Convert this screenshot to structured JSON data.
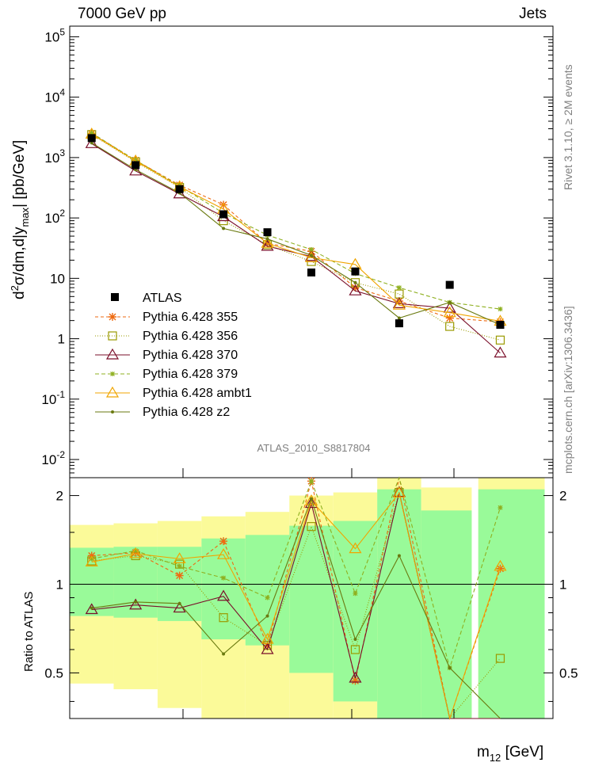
{
  "header": {
    "left": "7000 GeV pp",
    "right": "Jets"
  },
  "side": {
    "top": "Rivet 3.1.10, ≥ 2M events",
    "bottom": "mcplots.cern.ch [arXiv:1306.3436]"
  },
  "colors": {
    "data": "#000000",
    "p355": "#ee6a10",
    "p356": "#9a9a00",
    "p370": "#7a0f2a",
    "p379": "#8fb020",
    "ambt1": "#f0a500",
    "z2": "#6a7a10",
    "band_stat": "#99fa99",
    "band_syst": "#fbfa99"
  },
  "chart_data": {
    "type": "line",
    "title": "7000 GeV pp",
    "annotation": "ATLAS_2010_S8817804",
    "ylabel": "d²σ/dm,d|y_max| [pb/GeV]",
    "ylabel_main": "d",
    "ylabel_sup": "2",
    "ylabel_rest": "σ/dm,d|y",
    "ylabel_sub": "max",
    "ylabel_end": "| [pb/GeV]",
    "xlabel": "m12 [GeV]",
    "xlabel_main": "m",
    "xlabel_sub": "12",
    "xlabel_end": " [GeV]",
    "log_y": true,
    "ylim": [
      0.005,
      150000
    ],
    "x_bins": 11,
    "y_ticks": [
      "10^-2",
      "10^-1",
      "1",
      "10",
      "10^2",
      "10^3",
      "10^4",
      "10^5"
    ],
    "main_tick_labels": [
      {
        "base": "10",
        "exp": "-2",
        "value": 0.01
      },
      {
        "base": "10",
        "exp": "-1",
        "value": 0.1
      },
      {
        "base": "1",
        "exp": "",
        "value": 1
      },
      {
        "base": "10",
        "exp": "",
        "value": 10
      },
      {
        "base": "10",
        "exp": "2",
        "value": 100
      },
      {
        "base": "10",
        "exp": "3",
        "value": 1000
      },
      {
        "base": "10",
        "exp": "4",
        "value": 10000
      },
      {
        "base": "10",
        "exp": "5",
        "value": 100000
      }
    ],
    "data": {
      "name": "ATLAS",
      "values": [
        2100,
        750,
        300,
        115,
        58,
        12.5,
        13,
        1.8,
        7.8,
        1.7
      ],
      "errors": [
        0.3,
        0.3,
        0.3,
        0.3,
        0.3,
        0.3,
        0.3,
        0.3,
        0.3,
        0.3
      ]
    },
    "series": [
      {
        "name": "Pythia 6.428 355",
        "key": "p355",
        "marker": "star",
        "dash": "4,3",
        "values": [
          2500,
          900,
          350,
          165,
          38,
          28,
          7,
          4.2,
          2.2,
          1.9
        ]
      },
      {
        "name": "Pythia 6.428 356",
        "key": "p356",
        "marker": "square",
        "dash": "1,2",
        "values": [
          2400,
          850,
          320,
          90,
          36,
          19,
          8.5,
          5.5,
          1.6,
          0.95
        ]
      },
      {
        "name": "Pythia 6.428 370",
        "key": "p370",
        "marker": "triangle",
        "dash": "",
        "values": [
          1700,
          600,
          250,
          105,
          34,
          23,
          6.2,
          3.8,
          3.2,
          0.58
        ]
      },
      {
        "name": "Pythia 6.428 379",
        "key": "p379",
        "marker": "small-star",
        "dash": "5,3",
        "values": [
          2550,
          900,
          340,
          120,
          52,
          30,
          12,
          7,
          4,
          3.1
        ]
      },
      {
        "name": "Pythia 6.428 ambt1",
        "key": "ambt1",
        "marker": "triangle",
        "dash": "",
        "values": [
          2450,
          880,
          330,
          140,
          38,
          22,
          17,
          3.6,
          2.7,
          1.95
        ]
      },
      {
        "name": "Pythia 6.428 z2",
        "key": "z2",
        "marker": "dot",
        "dash": "",
        "values": [
          1750,
          630,
          260,
          67,
          45,
          24,
          8.5,
          2.2,
          4.0,
          1.7
        ]
      }
    ],
    "ratio": {
      "ylabel": "Ratio to ATLAS",
      "ylim": [
        0.35,
        2.3
      ],
      "ticks": [
        0.5,
        1,
        2
      ],
      "tick_labels": [
        "0.5",
        "1",
        "2"
      ],
      "bands": [
        {
          "stat": [
            0.78,
            1.33
          ],
          "syst": [
            0.46,
            1.59
          ]
        },
        {
          "stat": [
            0.77,
            1.34
          ],
          "syst": [
            0.44,
            1.61
          ]
        },
        {
          "stat": [
            0.75,
            1.34
          ],
          "syst": [
            0.38,
            1.64
          ]
        },
        {
          "stat": [
            0.65,
            1.43
          ],
          "syst": [
            0.33,
            1.7
          ]
        },
        {
          "stat": [
            0.62,
            1.47
          ],
          "syst": [
            0.33,
            1.76
          ]
        },
        {
          "stat": [
            0.5,
            1.58
          ],
          "syst": [
            0.33,
            2.0
          ]
        },
        {
          "stat": [
            0.4,
            1.64
          ],
          "syst": [
            0.33,
            2.05
          ]
        },
        {
          "stat": [
            0.33,
            2.1
          ],
          "syst": [
            0.33,
            2.3
          ]
        },
        {
          "stat": [
            0.33,
            1.78
          ],
          "syst": [
            0.33,
            2.13
          ]
        },
        {
          "stat": [
            0.33,
            2.1
          ],
          "syst": [
            0.33,
            2.3
          ]
        }
      ],
      "series": [
        {
          "key": "p355",
          "values": [
            1.25,
            1.28,
            1.07,
            1.4,
            0.62,
            2.24,
            0.47,
            2.3,
            0.33,
            1.13
          ]
        },
        {
          "key": "p356",
          "values": [
            1.2,
            1.25,
            1.17,
            0.77,
            0.62,
            1.57,
            0.6,
            2.05,
            0.33,
            0.56
          ]
        },
        {
          "key": "p370",
          "values": [
            0.82,
            0.85,
            0.83,
            0.91,
            0.6,
            1.88,
            0.48,
            2.05,
            0.33,
            0.33
          ]
        },
        {
          "key": "p379",
          "values": [
            1.22,
            1.3,
            1.15,
            1.05,
            0.9,
            2.24,
            0.93,
            2.3,
            0.52,
            1.82
          ]
        },
        {
          "key": "ambt1",
          "values": [
            1.19,
            1.27,
            1.22,
            1.26,
            0.65,
            1.92,
            1.32,
            2.04,
            0.33,
            1.15
          ]
        },
        {
          "key": "z2",
          "values": [
            0.83,
            0.87,
            0.86,
            0.58,
            0.78,
            1.95,
            0.65,
            1.25,
            0.52,
            0.33
          ]
        }
      ]
    }
  }
}
